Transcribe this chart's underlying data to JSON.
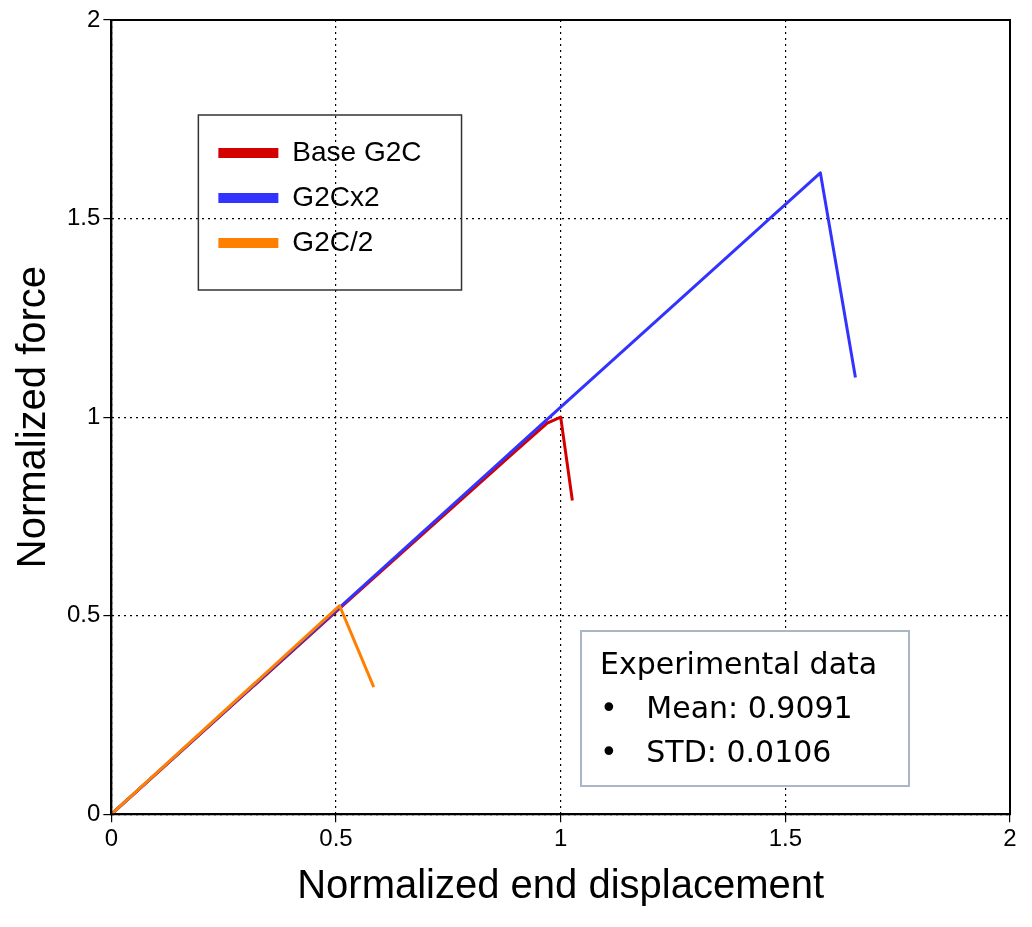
{
  "chart_data": {
    "type": "line",
    "xlabel": "Normalized end displacement",
    "ylabel": "Normalized force",
    "xlim": [
      0,
      2
    ],
    "xticks": [
      0,
      0.5,
      1,
      1.5,
      2
    ],
    "ylim": [
      0,
      2
    ],
    "yticks": [
      0,
      0.5,
      1,
      1.5,
      2
    ],
    "grid": true,
    "legend": "top left",
    "marker": "none",
    "line_style": "solid",
    "series": [
      {
        "name": "Base G2C",
        "color": "#d40000",
        "x": [
          0,
          0.5,
          0.9,
          0.97,
          1.0,
          1.026
        ],
        "values": [
          0,
          0.51,
          0.915,
          0.985,
          1.0,
          0.79
        ]
      },
      {
        "name": "G2Cx2",
        "color": "#3333ff",
        "x": [
          0,
          1.0,
          1.578,
          1.656
        ],
        "values": [
          0,
          1.025,
          1.615,
          1.1
        ]
      },
      {
        "name": "G2C/2",
        "color": "#ff8000",
        "x": [
          0,
          0.508,
          0.584
        ],
        "values": [
          0,
          0.525,
          0.32
        ]
      }
    ],
    "annotations": [
      "Experimental data",
      "•   Mean: 0.9091",
      "•   STD: 0.0106"
    ]
  }
}
